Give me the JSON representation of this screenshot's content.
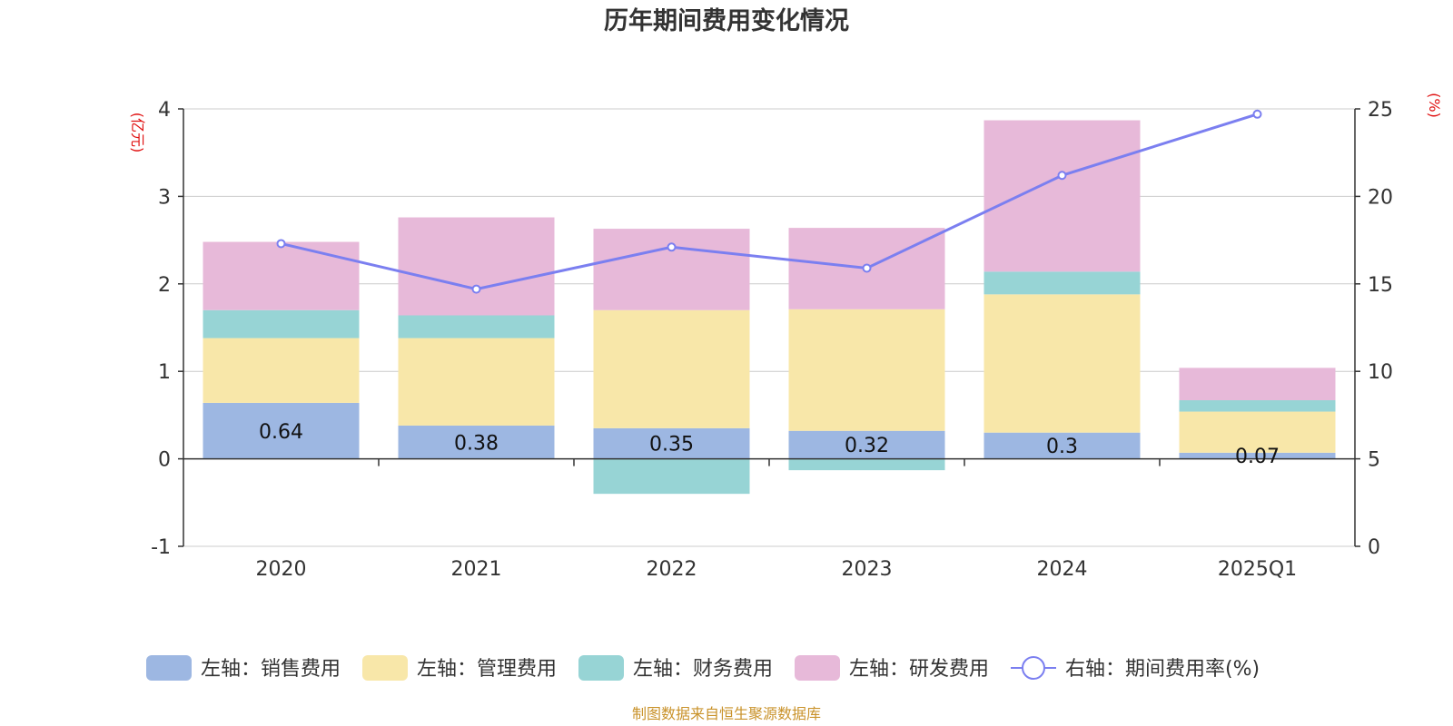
{
  "chart_data": {
    "type": "bar",
    "stacked": true,
    "title": "历年期间费用变化情况",
    "categories": [
      "2020",
      "2021",
      "2022",
      "2023",
      "2024",
      "2025Q1"
    ],
    "y_left": {
      "unit": "(亿元)",
      "min": -1,
      "max": 4,
      "ticks": [
        "-1",
        "0",
        "1",
        "2",
        "3",
        "4"
      ]
    },
    "y_right": {
      "unit": "(%)",
      "min": 0,
      "max": 25,
      "ticks": [
        "0",
        "5",
        "10",
        "15",
        "20",
        "25"
      ]
    },
    "series": [
      {
        "name": "左轴：销售费用",
        "axis": "left",
        "color": "#9db7e2",
        "values": [
          0.64,
          0.38,
          0.35,
          0.32,
          0.3,
          0.07
        ],
        "labels": [
          "0.64",
          "0.38",
          "0.35",
          "0.32",
          "0.3",
          "0.07"
        ]
      },
      {
        "name": "左轴：管理费用",
        "axis": "left",
        "color": "#f8e7a9",
        "values": [
          0.74,
          1.0,
          1.35,
          1.39,
          1.58,
          0.47
        ]
      },
      {
        "name": "左轴：财务费用",
        "axis": "left",
        "color": "#97d4d5",
        "values": [
          0.32,
          0.26,
          -0.4,
          -0.13,
          0.26,
          0.13
        ]
      },
      {
        "name": "左轴：研发费用",
        "axis": "left",
        "color": "#e7b9d9",
        "values": [
          0.78,
          1.12,
          0.93,
          0.93,
          1.73,
          0.37
        ]
      }
    ],
    "line": {
      "name": "右轴：期间费用率(%)",
      "axis": "right",
      "color": "#7b7ff0",
      "values": [
        17.3,
        14.7,
        17.1,
        15.9,
        21.2,
        24.7
      ]
    },
    "grid": true,
    "legend_position": "bottom"
  },
  "source": "制图数据来自恒生聚源数据库"
}
